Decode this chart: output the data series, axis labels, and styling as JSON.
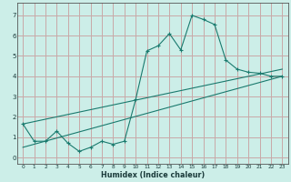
{
  "xlabel": "Humidex (Indice chaleur)",
  "background_color": "#cceee8",
  "grid_color": "#c8a8a8",
  "line_color": "#1a7a6e",
  "xlim": [
    -0.5,
    23.5
  ],
  "ylim": [
    -0.3,
    7.6
  ],
  "yticks": [
    0,
    1,
    2,
    3,
    4,
    5,
    6,
    7
  ],
  "xticks": [
    0,
    1,
    2,
    3,
    4,
    5,
    6,
    7,
    8,
    9,
    10,
    11,
    12,
    13,
    14,
    15,
    16,
    17,
    18,
    19,
    20,
    21,
    22,
    23
  ],
  "line1_x": [
    0,
    1,
    2,
    3,
    4,
    5,
    6,
    7,
    8,
    9,
    10,
    11,
    12,
    13,
    14,
    15,
    16,
    17,
    18,
    19,
    20,
    21,
    22,
    23
  ],
  "line1_y": [
    1.65,
    0.8,
    0.8,
    1.3,
    0.7,
    0.3,
    0.5,
    0.8,
    0.65,
    0.8,
    2.85,
    5.25,
    5.5,
    6.1,
    5.3,
    7.0,
    6.8,
    6.55,
    4.8,
    4.35,
    4.2,
    4.15,
    4.0,
    4.0
  ],
  "line2_x": [
    0,
    23
  ],
  "line2_y": [
    1.65,
    4.35
  ],
  "line3_x": [
    0,
    23
  ],
  "line3_y": [
    0.5,
    4.0
  ]
}
